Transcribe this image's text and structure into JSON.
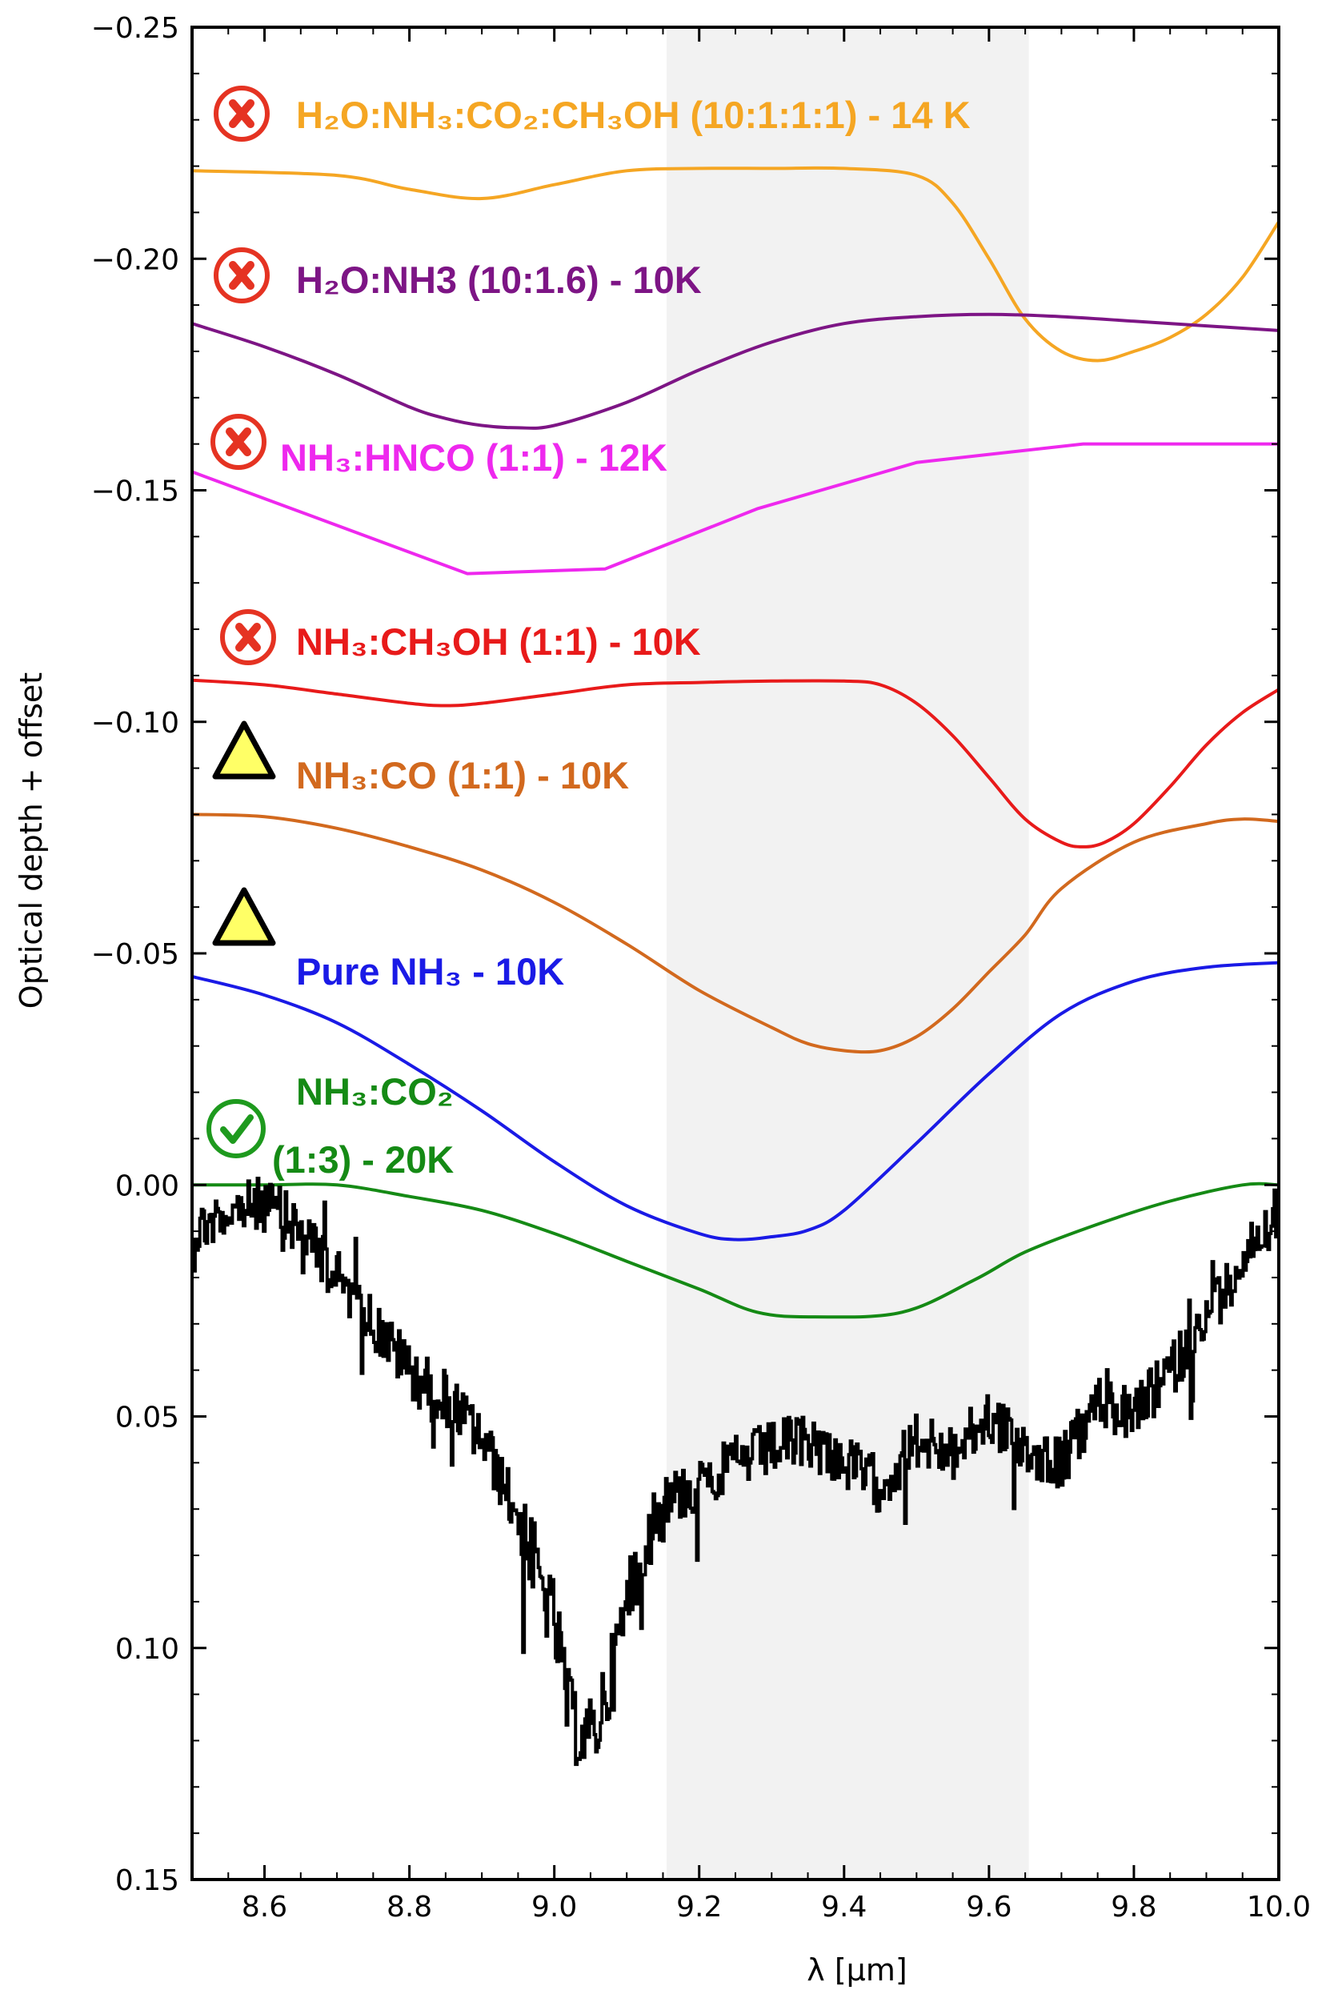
{
  "chart_data": {
    "type": "line",
    "xlabel": "λ [μm]",
    "ylabel": "Optical depth + offset",
    "xlim": [
      8.5,
      10.0
    ],
    "ylim": [
      0.15,
      -0.25
    ],
    "y_axis_inverted": true,
    "xticks": [
      8.6,
      8.8,
      9.0,
      9.2,
      9.4,
      9.6,
      9.8,
      10.0
    ],
    "xtick_labels": [
      "8.6",
      "8.8",
      "9.0",
      "9.2",
      "9.4",
      "9.6",
      "9.8",
      "10.0"
    ],
    "yticks": [
      -0.25,
      -0.2,
      -0.15,
      -0.1,
      -0.05,
      0.0,
      0.05,
      0.1,
      0.15
    ],
    "ytick_labels": [
      "−0.25",
      "−0.20",
      "−0.15",
      "−0.10",
      "−0.05",
      "0.00",
      "0.05",
      "0.10",
      "0.15"
    ],
    "shaded_region": {
      "x": [
        9.155,
        9.655
      ],
      "color": "#f2f2f2"
    },
    "grid": false,
    "series": [
      {
        "name": "H₂O:NH₃:CO₂:CH₃OH (10:1:1:1) - 14 K",
        "color": "#f5a623",
        "marker": "cross",
        "x": [
          8.5,
          8.7,
          8.8,
          8.9,
          9.0,
          9.1,
          9.2,
          9.3,
          9.4,
          9.5,
          9.55,
          9.6,
          9.65,
          9.7,
          9.75,
          9.8,
          9.85,
          9.9,
          9.95,
          10.0
        ],
        "y": [
          -0.219,
          -0.218,
          -0.215,
          -0.213,
          -0.216,
          -0.219,
          -0.2195,
          -0.2195,
          -0.2195,
          -0.218,
          -0.212,
          -0.2,
          -0.187,
          -0.18,
          -0.178,
          -0.18,
          -0.183,
          -0.188,
          -0.196,
          -0.208
        ]
      },
      {
        "name": "H₂O:NH3 (10:1.6) - 10K",
        "color": "#7d1585",
        "marker": "cross",
        "x": [
          8.5,
          8.6,
          8.7,
          8.8,
          8.85,
          8.9,
          8.95,
          9.0,
          9.1,
          9.2,
          9.3,
          9.4,
          9.5,
          9.6,
          9.7,
          9.8,
          9.9,
          10.0
        ],
        "y": [
          -0.186,
          -0.181,
          -0.175,
          -0.168,
          -0.1655,
          -0.164,
          -0.1635,
          -0.164,
          -0.169,
          -0.176,
          -0.182,
          -0.186,
          -0.1875,
          -0.188,
          -0.1875,
          -0.1865,
          -0.1855,
          -0.1845
        ]
      },
      {
        "name": "NH₃:HNCO (1:1) - 12K",
        "color": "#ee28ee",
        "marker": "cross",
        "x": [
          8.5,
          8.88,
          9.07,
          9.28,
          9.5,
          9.73,
          10.0
        ],
        "y": [
          -0.154,
          -0.132,
          -0.133,
          -0.146,
          -0.156,
          -0.16,
          -0.16
        ]
      },
      {
        "name": "NH₃:CH₃OH (1:1) - 10K",
        "color": "#e81a1a",
        "marker": "cross",
        "x": [
          8.5,
          8.6,
          8.7,
          8.8,
          8.85,
          8.9,
          9.0,
          9.1,
          9.2,
          9.3,
          9.4,
          9.45,
          9.5,
          9.55,
          9.6,
          9.65,
          9.7,
          9.73,
          9.76,
          9.8,
          9.85,
          9.9,
          9.95,
          10.0
        ],
        "y": [
          -0.109,
          -0.108,
          -0.106,
          -0.104,
          -0.1035,
          -0.104,
          -0.106,
          -0.108,
          -0.1085,
          -0.1088,
          -0.1088,
          -0.108,
          -0.104,
          -0.097,
          -0.088,
          -0.079,
          -0.074,
          -0.073,
          -0.074,
          -0.078,
          -0.086,
          -0.095,
          -0.102,
          -0.107
        ]
      },
      {
        "name": "NH₃:CO (1:1) - 10K",
        "color": "#d2691e",
        "marker": "triangle",
        "x": [
          8.5,
          8.6,
          8.7,
          8.8,
          8.9,
          9.0,
          9.1,
          9.2,
          9.3,
          9.35,
          9.4,
          9.45,
          9.5,
          9.55,
          9.6,
          9.65,
          9.7,
          9.8,
          9.9,
          9.95,
          10.0
        ],
        "y": [
          -0.08,
          -0.0795,
          -0.077,
          -0.073,
          -0.068,
          -0.061,
          -0.052,
          -0.042,
          -0.034,
          -0.0305,
          -0.029,
          -0.029,
          -0.032,
          -0.038,
          -0.046,
          -0.054,
          -0.064,
          -0.074,
          -0.078,
          -0.079,
          -0.0785
        ]
      },
      {
        "name": "Pure NH₃ - 10K",
        "color": "#1a1ae6",
        "marker": "triangle",
        "x": [
          8.5,
          8.6,
          8.7,
          8.8,
          8.9,
          9.0,
          9.1,
          9.2,
          9.25,
          9.3,
          9.35,
          9.4,
          9.5,
          9.6,
          9.7,
          9.8,
          9.9,
          10.0
        ],
        "y": [
          -0.045,
          -0.041,
          -0.035,
          -0.026,
          -0.016,
          -0.005,
          0.0045,
          0.0105,
          0.0118,
          0.0112,
          0.0098,
          0.0055,
          -0.009,
          -0.024,
          -0.037,
          -0.044,
          -0.047,
          -0.048
        ]
      },
      {
        "name": "NH₃:CO₂ (1:3) - 20K",
        "color": "#158a15",
        "marker": "check",
        "x": [
          8.5,
          8.6,
          8.7,
          8.8,
          8.9,
          9.0,
          9.1,
          9.2,
          9.28,
          9.36,
          9.48,
          9.58,
          9.65,
          9.75,
          9.85,
          9.95,
          10.0
        ],
        "y": [
          0.0,
          0.0,
          0.0,
          0.0025,
          0.0055,
          0.0105,
          0.0165,
          0.0225,
          0.0275,
          0.0285,
          0.0275,
          0.0205,
          0.0145,
          0.0085,
          0.0035,
          0.0,
          0.0
        ]
      },
      {
        "name": "",
        "color": "#000000",
        "marker": "none",
        "x": [
          8.5,
          8.55,
          8.6,
          8.65,
          8.7,
          8.75,
          8.8,
          8.85,
          8.9,
          8.95,
          9.0,
          9.02,
          9.05,
          9.08,
          9.1,
          9.12,
          9.15,
          9.2,
          9.25,
          9.3,
          9.35,
          9.4,
          9.45,
          9.5,
          9.55,
          9.6,
          9.65,
          9.7,
          9.75,
          9.8,
          9.85,
          9.9,
          9.95,
          10.0
        ],
        "y": [
          0.01,
          0.006,
          0.004,
          0.01,
          0.02,
          0.03,
          0.04,
          0.046,
          0.055,
          0.072,
          0.095,
          0.115,
          0.12,
          0.105,
          0.09,
          0.077,
          0.068,
          0.065,
          0.06,
          0.057,
          0.055,
          0.06,
          0.065,
          0.055,
          0.058,
          0.05,
          0.057,
          0.06,
          0.047,
          0.05,
          0.04,
          0.03,
          0.015,
          0.005
        ]
      }
    ]
  }
}
